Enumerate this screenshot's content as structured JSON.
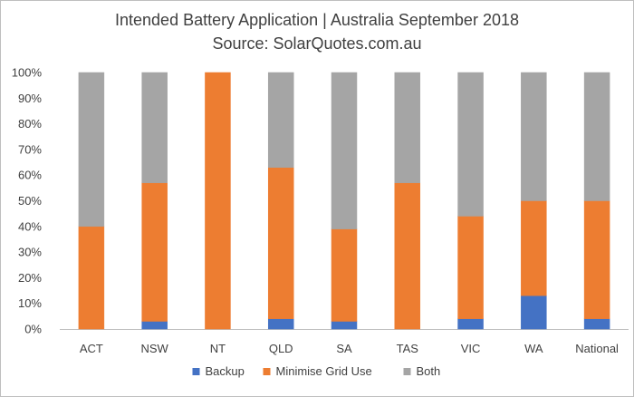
{
  "chart_data": {
    "type": "bar",
    "stacked": true,
    "title": "Intended Battery Application | Australia September 2018",
    "subtitle": "Source: SolarQuotes.com.au",
    "categories": [
      "ACT",
      "NSW",
      "NT",
      "QLD",
      "SA",
      "TAS",
      "VIC",
      "WA",
      "National"
    ],
    "series": [
      {
        "name": "Backup",
        "color": "#4472c4",
        "values": [
          0,
          3,
          0,
          4,
          3,
          0,
          4,
          13,
          4
        ]
      },
      {
        "name": "Minimise Grid Use",
        "color": "#ed7d31",
        "values": [
          40,
          54,
          100,
          59,
          36,
          57,
          40,
          37,
          46
        ]
      },
      {
        "name": "Both",
        "color": "#a5a5a5",
        "values": [
          60,
          43,
          0,
          37,
          61,
          43,
          56,
          50,
          50
        ]
      }
    ],
    "ylim": [
      0,
      100
    ],
    "yticks": [
      "0%",
      "10%",
      "20%",
      "30%",
      "40%",
      "50%",
      "60%",
      "70%",
      "80%",
      "90%",
      "100%"
    ],
    "grid": false,
    "legend": "bottom"
  }
}
